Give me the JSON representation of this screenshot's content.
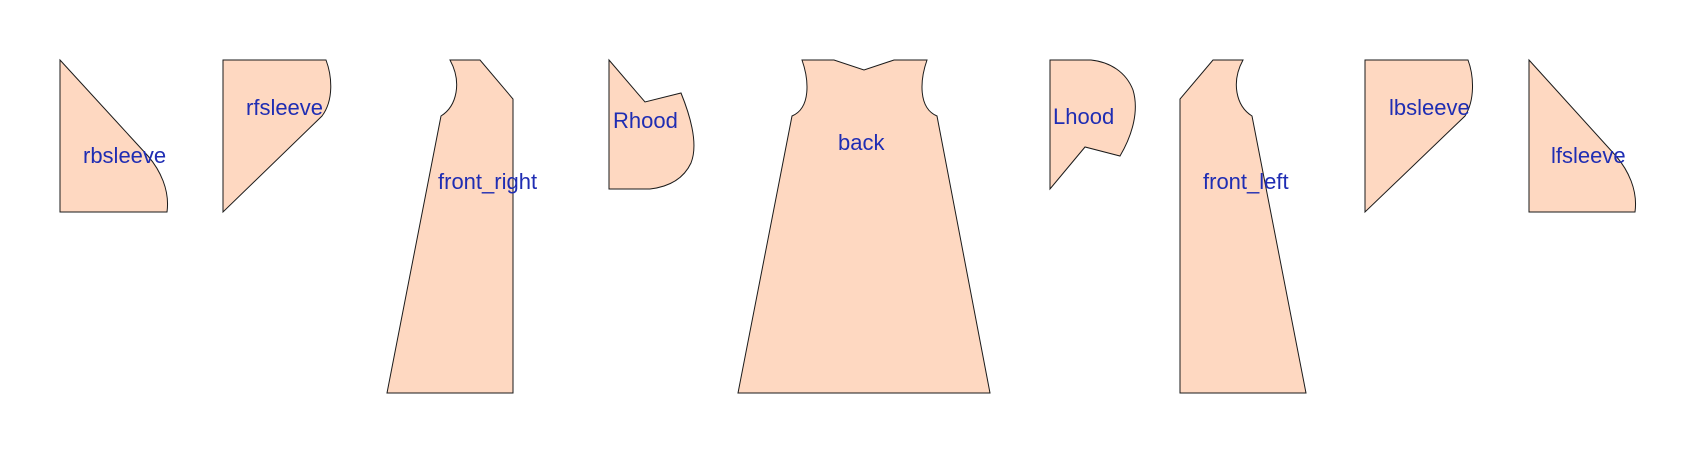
{
  "pattern": {
    "colors": {
      "piece_fill": "#fed8c1",
      "piece_stroke": "#1a1a1a",
      "label": "#1f2db3"
    },
    "pieces": [
      {
        "name": "rbsleeve"
      },
      {
        "name": "rfsleeve"
      },
      {
        "name": "front_right"
      },
      {
        "name": "Rhood"
      },
      {
        "name": "back"
      },
      {
        "name": "Lhood"
      },
      {
        "name": "front_left"
      },
      {
        "name": "lbsleeve"
      },
      {
        "name": "lfsleeve"
      }
    ]
  }
}
